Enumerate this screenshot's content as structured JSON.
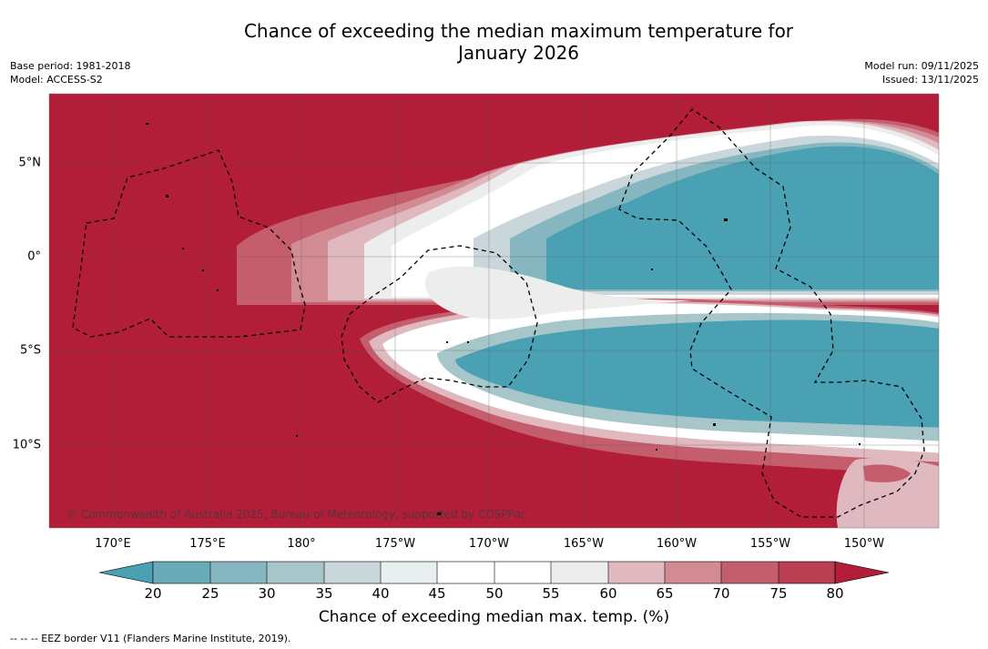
{
  "header": {
    "title_line1": "Chance of exceeding the median maximum temperature for",
    "title_line2": "January 2026",
    "base_period": "Base period: 1981-2018",
    "model": "Model: ACCESS-S2",
    "model_run": "Model run: 09/11/2025",
    "issued": "Issued: 13/11/2025"
  },
  "map": {
    "lon_ticks": [
      "170°E",
      "175°E",
      "180°",
      "175°W",
      "170°W",
      "165°W",
      "160°W",
      "155°W",
      "150°W"
    ],
    "lat_ticks": [
      "5°N",
      "0°",
      "5°S",
      "10°S"
    ],
    "copyright": "© Commonwealth of Australia 2025, Bureau of Meteorology, supported by COSPPac"
  },
  "colorbar": {
    "ticks": [
      "20",
      "25",
      "30",
      "35",
      "40",
      "45",
      "50",
      "55",
      "60",
      "65",
      "70",
      "75",
      "80"
    ],
    "label": "Chance of exceeding median max. temp. (%)",
    "colors": [
      "#4aa1b3",
      "#6aaab7",
      "#86b6c0",
      "#a7c6ca",
      "#c9d7da",
      "#e9eef0",
      "#ffffff",
      "#ffffff",
      "#ededed",
      "#dfb9bf",
      "#d28a93",
      "#c55e6c",
      "#b93e51",
      "#b21d38"
    ]
  },
  "legend": {
    "eez_note": "--  --  -- EEZ border V11 (Flanders Marine Institute, 2019)."
  }
}
